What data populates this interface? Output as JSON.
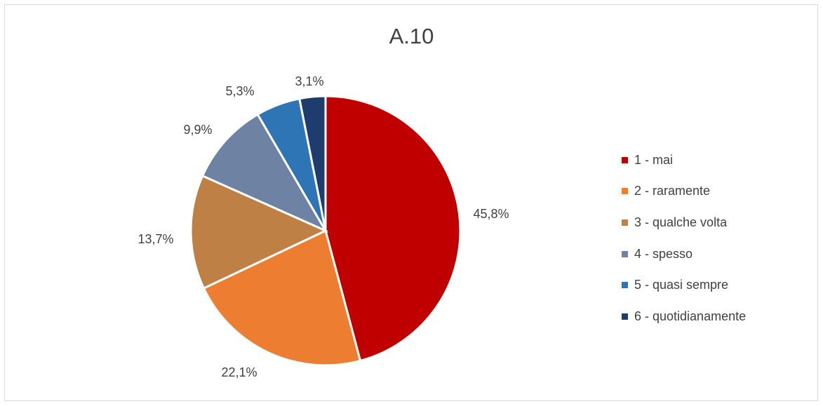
{
  "chart_data": {
    "type": "pie",
    "title": "A.10",
    "categories": [
      "1 - mai",
      "2 - raramente",
      "3 - qualche volta",
      "4 - spesso",
      "5 - quasi sempre",
      "6 - quotidianamente"
    ],
    "values": [
      45.8,
      22.1,
      13.7,
      9.9,
      5.3,
      3.1
    ],
    "labels": [
      "45,8%",
      "22,1%",
      "13,7%",
      "9,9%",
      "5,3%",
      "3,1%"
    ],
    "colors": [
      "#C00000",
      "#ED7D31",
      "#BF8046",
      "#6E82A3",
      "#2E75B6",
      "#1F3C6E"
    ],
    "legend_position": "right"
  }
}
